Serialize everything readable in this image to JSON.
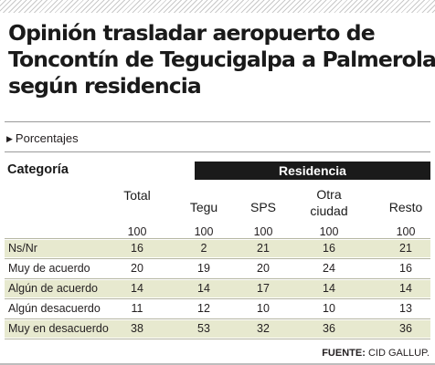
{
  "chart_data": {
    "type": "table",
    "title_lines": [
      "Opinión trasladar aeropuerto de",
      "Toncontín de Tegucigalpa  a Palmerola",
      "según residencia"
    ],
    "subtitle": "Porcentajes",
    "category_header": "Categoría",
    "group_header": "Residencia",
    "columns": [
      {
        "key": "total",
        "label_lines": [
          "Total"
        ],
        "n": "100"
      },
      {
        "key": "tegu",
        "label_lines": [
          "Tegu"
        ],
        "n": "100"
      },
      {
        "key": "sps",
        "label_lines": [
          "SPS"
        ],
        "n": "100"
      },
      {
        "key": "otra",
        "label_lines": [
          "Otra",
          "ciudad"
        ],
        "n": "100"
      },
      {
        "key": "resto",
        "label_lines": [
          "Resto"
        ],
        "n": "100"
      }
    ],
    "rows": [
      {
        "label": "Ns/Nr",
        "values": [
          16,
          2,
          21,
          16,
          21
        ]
      },
      {
        "label": "Muy de acuerdo",
        "values": [
          20,
          19,
          20,
          24,
          16
        ]
      },
      {
        "label": "Algún de acuerdo",
        "values": [
          14,
          14,
          17,
          14,
          14
        ]
      },
      {
        "label": "Algún desacuerdo",
        "values": [
          11,
          12,
          10,
          10,
          13
        ]
      },
      {
        "label": "Muy en desacuerdo",
        "values": [
          38,
          53,
          32,
          36,
          36
        ]
      }
    ],
    "source_label": "FUENTE:",
    "source_value": "CID GALLUP."
  },
  "colors": {
    "shade": "#e7e9cf",
    "banner": "#1a1a1a",
    "text": "#231f20"
  },
  "icons": {
    "subtitle_marker": "triangle-right-icon"
  }
}
